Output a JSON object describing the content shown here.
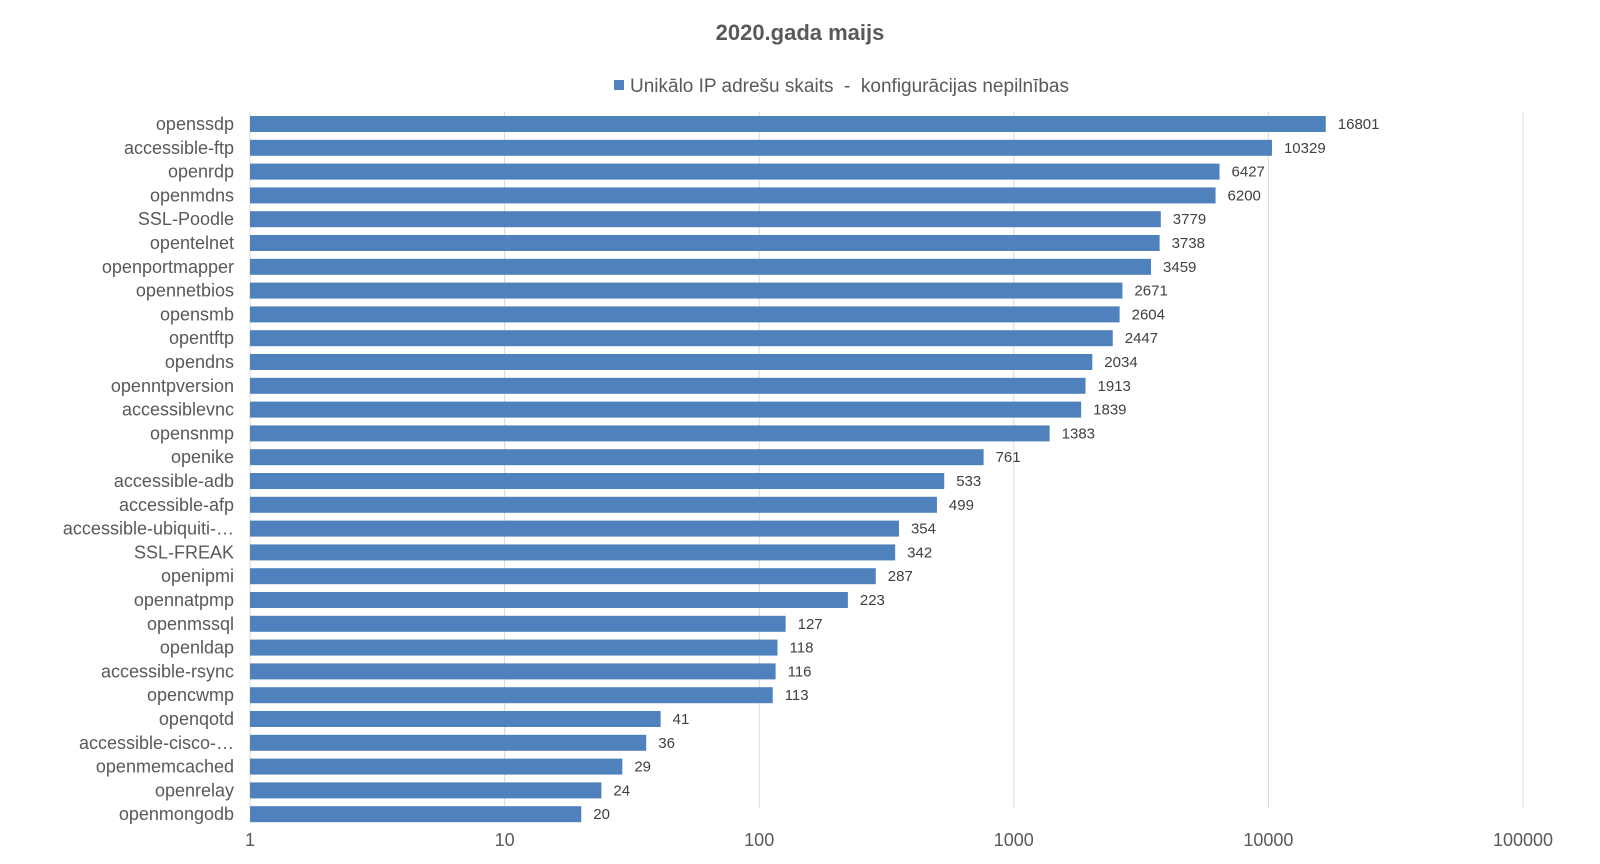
{
  "chart_data": {
    "type": "bar",
    "orientation": "horizontal",
    "title": "2020.gada maijs",
    "xscale": "log",
    "xlim": [
      1,
      100000
    ],
    "x_ticks": [
      1,
      10,
      100,
      1000,
      10000,
      100000
    ],
    "x_tick_labels": [
      "1",
      "10",
      "100",
      "1000",
      "10000",
      "100000"
    ],
    "grid": true,
    "legend_position": "top",
    "series": [
      {
        "name": "Unikālo IP adrešu skaits  -  konfigurācijas nepilnības",
        "color": "#4f81bd",
        "values": [
          16801,
          10329,
          6427,
          6200,
          3779,
          3738,
          3459,
          2671,
          2604,
          2447,
          2034,
          1913,
          1839,
          1383,
          761,
          533,
          499,
          354,
          342,
          287,
          223,
          127,
          118,
          116,
          113,
          41,
          36,
          29,
          24,
          20
        ]
      }
    ],
    "categories": [
      "openssdp",
      "accessible-ftp",
      "openrdp",
      "openmdns",
      "SSL-Poodle",
      "opentelnet",
      "openportmapper",
      "opennetbios",
      "opensmb",
      "opentftp",
      "opendns",
      "openntpversion",
      "accessiblevnc",
      "opensnmp",
      "openike",
      "accessible-adb",
      "accessible-afp",
      "accessible-ubiquiti-…",
      "SSL-FREAK",
      "openipmi",
      "opennatpmp",
      "openmssql",
      "openldap",
      "accessible-rsync",
      "opencwmp",
      "openqotd",
      "accessible-cisco-…",
      "openmemcached",
      "openrelay",
      "openmongodb"
    ]
  }
}
